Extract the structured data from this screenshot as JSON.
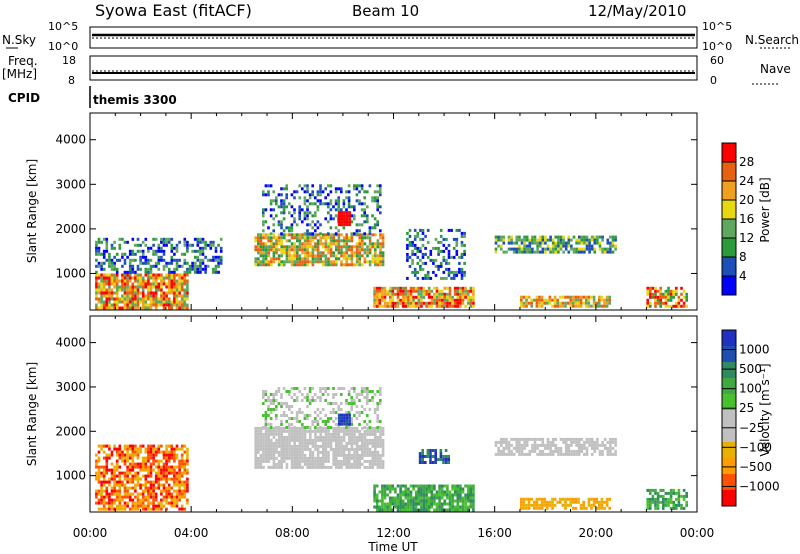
{
  "header": {
    "station": "Syowa East (fitACF)",
    "beam": "Beam 10",
    "date": "12/May/2010"
  },
  "top_panels": {
    "nsky_label": "N.Sky",
    "nsky_top": "10^5",
    "nsky_bottom": "10^0",
    "nsearch_label": "N.Search",
    "nsearch_top": "10^5",
    "nsearch_bottom": "10^0",
    "freq_label": "Freq.",
    "freq_unit": "[MHz]",
    "freq_top": "18",
    "freq_bottom": "8",
    "nave_label": "Nave",
    "nave_top": "60",
    "nave_bottom": "0",
    "cpid_label": "CPID",
    "cpid_value": "themis 3300"
  },
  "colors": {
    "power": [
      "#0000ff",
      "#1d4fb8",
      "#2a9a3a",
      "#5fa65f",
      "#e8d810",
      "#f0a020",
      "#e86010",
      "#ff0000"
    ],
    "velocity": [
      "#ff0000",
      "#ff5000",
      "#ff9c00",
      "#e8b000",
      "#c0c0c0",
      "#c0c0c0",
      "#48c030",
      "#40a840",
      "#2f8a60",
      "#1e4fb0",
      "#2030c0"
    ]
  },
  "chart_data": [
    {
      "type": "heatmap",
      "name": "power",
      "xlabel": "",
      "ylabel": "Slant Range [km]",
      "x_ticks": [
        "00:00",
        "04:00",
        "08:00",
        "12:00",
        "16:00",
        "20:00",
        "00:00"
      ],
      "xlim_hours": [
        0,
        24
      ],
      "y_ticks": [
        1000,
        2000,
        3000,
        4000
      ],
      "ylim": [
        180,
        4600
      ],
      "colorbar_label": "Power [dB]",
      "colorbar_ticks": [
        "4",
        "8",
        "12",
        "16",
        "20",
        "24",
        "28"
      ],
      "regions": [
        {
          "t0": 0.2,
          "t1": 3.8,
          "r0": 250,
          "r1": 1000,
          "levels": [
            3,
            4,
            5,
            6,
            7
          ],
          "density": 0.85
        },
        {
          "t0": 0.2,
          "t1": 5.2,
          "r0": 1000,
          "r1": 1800,
          "levels": [
            0,
            1,
            2,
            3
          ],
          "density": 0.45
        },
        {
          "t0": 6.5,
          "t1": 11.6,
          "r0": 1200,
          "r1": 1900,
          "levels": [
            2,
            3,
            4,
            5,
            6
          ],
          "density": 0.8
        },
        {
          "t0": 6.8,
          "t1": 11.5,
          "r0": 1900,
          "r1": 3000,
          "levels": [
            0,
            1,
            2,
            3
          ],
          "density": 0.35
        },
        {
          "t0": 9.8,
          "t1": 10.3,
          "r0": 2100,
          "r1": 2400,
          "levels": [
            7
          ],
          "density": 1.0
        },
        {
          "t0": 11.2,
          "t1": 15.2,
          "r0": 250,
          "r1": 700,
          "levels": [
            3,
            4,
            5,
            6,
            7
          ],
          "density": 0.85
        },
        {
          "t0": 12.5,
          "t1": 14.8,
          "r0": 900,
          "r1": 2000,
          "levels": [
            0,
            1,
            2,
            3
          ],
          "density": 0.4
        },
        {
          "t0": 16.0,
          "t1": 20.8,
          "r0": 1450,
          "r1": 1850,
          "levels": [
            1,
            2,
            3,
            4
          ],
          "density": 0.75
        },
        {
          "t0": 17.0,
          "t1": 20.5,
          "r0": 250,
          "r1": 500,
          "levels": [
            3,
            4,
            5,
            6
          ],
          "density": 0.7
        },
        {
          "t0": 22.0,
          "t1": 23.6,
          "r0": 250,
          "r1": 700,
          "levels": [
            2,
            4,
            6,
            7
          ],
          "density": 0.7
        }
      ]
    },
    {
      "type": "heatmap",
      "name": "velocity",
      "xlabel": "Time UT",
      "ylabel": "Slant Range [km]",
      "x_ticks": [
        "00:00",
        "04:00",
        "08:00",
        "12:00",
        "16:00",
        "20:00",
        "00:00"
      ],
      "xlim_hours": [
        0,
        24
      ],
      "y_ticks": [
        1000,
        2000,
        3000,
        4000
      ],
      "ylim": [
        180,
        4600
      ],
      "colorbar_label": "Velocity [m s⁻¹]",
      "colorbar_ticks": [
        "1000",
        "500",
        "100",
        "25",
        "−25",
        "−100",
        "−500",
        "−1000"
      ],
      "regions": [
        {
          "t0": 0.2,
          "t1": 3.8,
          "r0": 250,
          "r1": 1700,
          "levels": [
            0,
            1,
            2,
            3
          ],
          "density": 0.7
        },
        {
          "t0": 6.5,
          "t1": 11.6,
          "r0": 1200,
          "r1": 2100,
          "levels": [
            4,
            5
          ],
          "density": 0.85
        },
        {
          "t0": 6.8,
          "t1": 11.5,
          "r0": 2100,
          "r1": 3000,
          "levels": [
            4,
            5,
            6
          ],
          "density": 0.4
        },
        {
          "t0": 9.8,
          "t1": 10.3,
          "r0": 2150,
          "r1": 2400,
          "levels": [
            9,
            10
          ],
          "density": 1.0
        },
        {
          "t0": 11.2,
          "t1": 15.2,
          "r0": 250,
          "r1": 800,
          "levels": [
            6,
            7,
            8
          ],
          "density": 0.85
        },
        {
          "t0": 13.0,
          "t1": 14.2,
          "r0": 1300,
          "r1": 1600,
          "levels": [
            8,
            9,
            10
          ],
          "density": 0.6
        },
        {
          "t0": 16.0,
          "t1": 20.8,
          "r0": 1450,
          "r1": 1850,
          "levels": [
            4,
            5
          ],
          "density": 0.75
        },
        {
          "t0": 17.0,
          "t1": 20.5,
          "r0": 250,
          "r1": 500,
          "levels": [
            2,
            3
          ],
          "density": 0.7
        },
        {
          "t0": 22.0,
          "t1": 23.6,
          "r0": 250,
          "r1": 700,
          "levels": [
            6,
            7,
            8
          ],
          "density": 0.7
        }
      ]
    }
  ]
}
